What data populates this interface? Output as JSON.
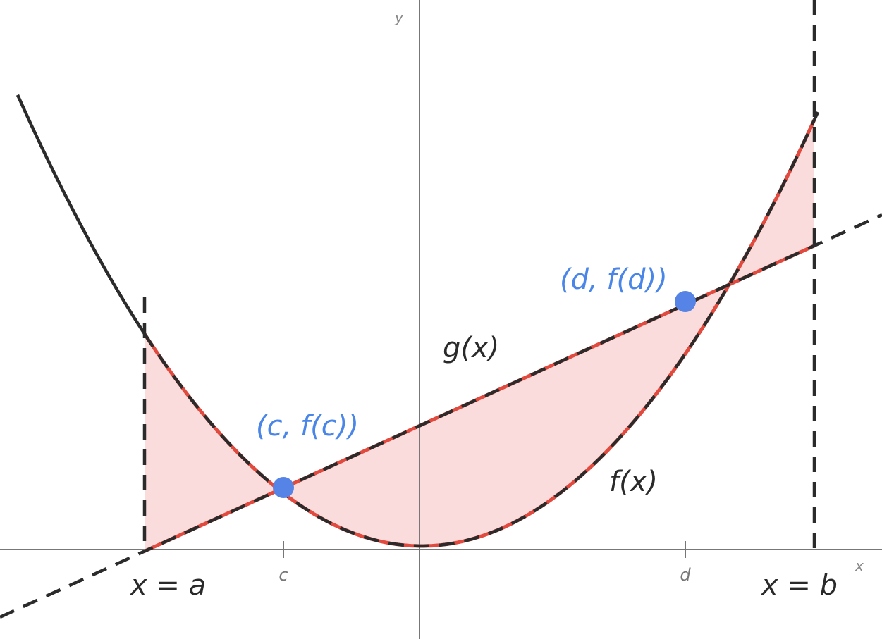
{
  "axes": {
    "x_label": "x",
    "y_label": "y",
    "ticks": [
      {
        "label": "c"
      },
      {
        "label": "d"
      }
    ]
  },
  "curves": {
    "f_label": "f(x)",
    "g_label": "g(x)"
  },
  "points": {
    "c_label": "(c, f(c))",
    "d_label": "(d, f(d))"
  },
  "bounds": {
    "a_label": "x = a",
    "b_label": "x = b"
  },
  "colors": {
    "curve": "#2b2b2b",
    "shade": "#fbdcdc",
    "boundary": "#e04a3f",
    "point": "#5584e6",
    "point_label": "#4a86e8",
    "axis": "#777777"
  }
}
